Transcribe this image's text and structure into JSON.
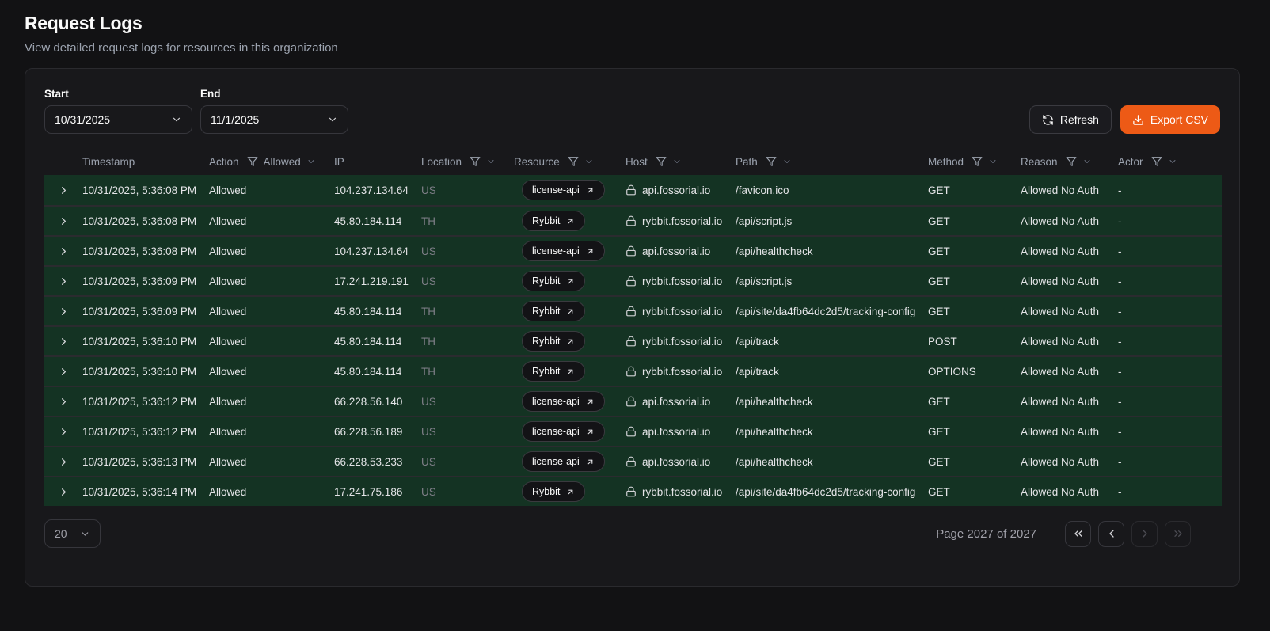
{
  "page": {
    "title": "Request Logs",
    "subtitle": "View detailed request logs for resources in this organization"
  },
  "controls": {
    "start_label": "Start",
    "start_value": "10/31/2025",
    "end_label": "End",
    "end_value": "11/1/2025",
    "refresh_label": "Refresh",
    "export_label": "Export CSV"
  },
  "colors": {
    "accent_orange": "#ed5a16",
    "row_green": "#143323",
    "card_background": "#18181b",
    "page_background": "#121214"
  },
  "icons": {
    "refresh": "circular-arrows",
    "export": "download-tray",
    "column_filter": "funnel",
    "row_expand": "chevron-right",
    "resource_badge": "arrow-up-right",
    "host": "padlock",
    "select": "chevron-down",
    "pagination": [
      "chevrons-left",
      "chevron-left",
      "chevron-right",
      "chevrons-right"
    ]
  },
  "table": {
    "columns": [
      {
        "label": "Timestamp",
        "filter": false
      },
      {
        "label": "Action",
        "filter": true,
        "filter_value": "Allowed"
      },
      {
        "label": "IP",
        "filter": false
      },
      {
        "label": "Location",
        "filter": true
      },
      {
        "label": "Resource",
        "filter": true
      },
      {
        "label": "Host",
        "filter": true
      },
      {
        "label": "Path",
        "filter": true
      },
      {
        "label": "Method",
        "filter": true
      },
      {
        "label": "Reason",
        "filter": true
      },
      {
        "label": "Actor",
        "filter": true
      }
    ],
    "rows": [
      {
        "timestamp": "10/31/2025, 5:36:08 PM",
        "action": "Allowed",
        "ip": "104.237.134.64",
        "location": "US",
        "resource": "license-api",
        "host": "api.fossorial.io",
        "path": "/favicon.ico",
        "method": "GET",
        "reason": "Allowed No Auth",
        "actor": "-"
      },
      {
        "timestamp": "10/31/2025, 5:36:08 PM",
        "action": "Allowed",
        "ip": "45.80.184.114",
        "location": "TH",
        "resource": "Rybbit",
        "host": "rybbit.fossorial.io",
        "path": "/api/script.js",
        "method": "GET",
        "reason": "Allowed No Auth",
        "actor": "-"
      },
      {
        "timestamp": "10/31/2025, 5:36:08 PM",
        "action": "Allowed",
        "ip": "104.237.134.64",
        "location": "US",
        "resource": "license-api",
        "host": "api.fossorial.io",
        "path": "/api/healthcheck",
        "method": "GET",
        "reason": "Allowed No Auth",
        "actor": "-"
      },
      {
        "timestamp": "10/31/2025, 5:36:09 PM",
        "action": "Allowed",
        "ip": "17.241.219.191",
        "location": "US",
        "resource": "Rybbit",
        "host": "rybbit.fossorial.io",
        "path": "/api/script.js",
        "method": "GET",
        "reason": "Allowed No Auth",
        "actor": "-"
      },
      {
        "timestamp": "10/31/2025, 5:36:09 PM",
        "action": "Allowed",
        "ip": "45.80.184.114",
        "location": "TH",
        "resource": "Rybbit",
        "host": "rybbit.fossorial.io",
        "path": "/api/site/da4fb64dc2d5/tracking-config",
        "method": "GET",
        "reason": "Allowed No Auth",
        "actor": "-"
      },
      {
        "timestamp": "10/31/2025, 5:36:10 PM",
        "action": "Allowed",
        "ip": "45.80.184.114",
        "location": "TH",
        "resource": "Rybbit",
        "host": "rybbit.fossorial.io",
        "path": "/api/track",
        "method": "POST",
        "reason": "Allowed No Auth",
        "actor": "-"
      },
      {
        "timestamp": "10/31/2025, 5:36:10 PM",
        "action": "Allowed",
        "ip": "45.80.184.114",
        "location": "TH",
        "resource": "Rybbit",
        "host": "rybbit.fossorial.io",
        "path": "/api/track",
        "method": "OPTIONS",
        "reason": "Allowed No Auth",
        "actor": "-"
      },
      {
        "timestamp": "10/31/2025, 5:36:12 PM",
        "action": "Allowed",
        "ip": "66.228.56.140",
        "location": "US",
        "resource": "license-api",
        "host": "api.fossorial.io",
        "path": "/api/healthcheck",
        "method": "GET",
        "reason": "Allowed No Auth",
        "actor": "-"
      },
      {
        "timestamp": "10/31/2025, 5:36:12 PM",
        "action": "Allowed",
        "ip": "66.228.56.189",
        "location": "US",
        "resource": "license-api",
        "host": "api.fossorial.io",
        "path": "/api/healthcheck",
        "method": "GET",
        "reason": "Allowed No Auth",
        "actor": "-"
      },
      {
        "timestamp": "10/31/2025, 5:36:13 PM",
        "action": "Allowed",
        "ip": "66.228.53.233",
        "location": "US",
        "resource": "license-api",
        "host": "api.fossorial.io",
        "path": "/api/healthcheck",
        "method": "GET",
        "reason": "Allowed No Auth",
        "actor": "-"
      },
      {
        "timestamp": "10/31/2025, 5:36:14 PM",
        "action": "Allowed",
        "ip": "17.241.75.186",
        "location": "US",
        "resource": "Rybbit",
        "host": "rybbit.fossorial.io",
        "path": "/api/site/da4fb64dc2d5/tracking-config",
        "method": "GET",
        "reason": "Allowed No Auth",
        "actor": "-"
      }
    ]
  },
  "pagination": {
    "page_size": "20",
    "page_info": "Page 2027 of 2027",
    "buttons": [
      {
        "name": "first-page",
        "icon": "chevrons-left",
        "enabled": true
      },
      {
        "name": "previous-page",
        "icon": "chevron-left",
        "enabled": true
      },
      {
        "name": "next-page",
        "icon": "chevron-right",
        "enabled": false
      },
      {
        "name": "last-page",
        "icon": "chevrons-right",
        "enabled": false
      }
    ]
  }
}
